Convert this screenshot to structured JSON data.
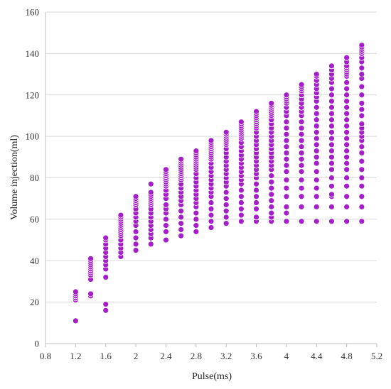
{
  "chart_data": {
    "type": "scatter",
    "title": "",
    "xlabel": "Pulse(ms)",
    "ylabel": "Volume injection(ml)",
    "xlim": [
      0.8,
      5.2
    ],
    "ylim": [
      0,
      160
    ],
    "xticks": [
      "0.8",
      "1.2",
      "1.6",
      "2",
      "2.4",
      "2.8",
      "3.2",
      "3.6",
      "4",
      "4.4",
      "4.8",
      "5.2"
    ],
    "yticks": [
      "0",
      "20",
      "40",
      "60",
      "80",
      "100",
      "120",
      "140",
      "160"
    ],
    "grid": "horizontal",
    "legend": "none",
    "marker_color": "#a51fc8",
    "series": [
      {
        "columns": [
          {
            "x": 1.2,
            "y": [
              11,
              21,
              22,
              23,
              24,
              25
            ]
          },
          {
            "x": 1.4,
            "y": [
              23,
              24,
              31,
              33,
              34,
              35,
              36,
              37,
              38,
              39,
              40,
              41
            ]
          },
          {
            "x": 1.6,
            "y": [
              16,
              19,
              32,
              36,
              38,
              40,
              42,
              44,
              46,
              48,
              50,
              51
            ]
          },
          {
            "x": 1.8,
            "y": [
              42,
              44,
              46,
              48,
              50,
              52,
              53,
              54,
              55,
              56,
              57,
              58,
              59,
              60,
              61,
              62
            ]
          },
          {
            "x": 2.0,
            "y": [
              45,
              48,
              51,
              54,
              57,
              59,
              61,
              63,
              65,
              67,
              68,
              69,
              70,
              71
            ]
          },
          {
            "x": 2.2,
            "y": [
              48,
              51,
              53,
              55,
              57,
              59,
              61,
              63,
              65,
              67,
              68,
              69,
              70,
              71,
              72,
              73,
              77
            ]
          },
          {
            "x": 2.4,
            "y": [
              50,
              54,
              57,
              60,
              63,
              65,
              67,
              70,
              72,
              74,
              76,
              77,
              78,
              79,
              80,
              81,
              82,
              83,
              84
            ]
          },
          {
            "x": 2.6,
            "y": [
              52,
              55,
              58,
              61,
              64,
              67,
              69,
              71,
              73,
              75,
              77,
              79,
              80,
              81,
              82,
              83,
              84,
              85,
              86,
              87,
              88,
              89
            ]
          },
          {
            "x": 2.8,
            "y": [
              54,
              57,
              60,
              63,
              66,
              68,
              70,
              72,
              74,
              76,
              78,
              80,
              82,
              84,
              85,
              86,
              87,
              88,
              89,
              90,
              91,
              92,
              93
            ]
          },
          {
            "x": 3.0,
            "y": [
              56,
              59,
              62,
              65,
              68,
              71,
              73,
              75,
              77,
              79,
              81,
              83,
              85,
              87,
              89,
              90,
              91,
              92,
              93,
              94,
              95,
              96,
              97,
              98
            ]
          },
          {
            "x": 3.2,
            "y": [
              58,
              61,
              64,
              67,
              70,
              73,
              76,
              78,
              80,
              82,
              84,
              86,
              88,
              90,
              92,
              94,
              96,
              97,
              98,
              99,
              100,
              101,
              102
            ]
          },
          {
            "x": 3.4,
            "y": [
              59,
              62,
              65,
              68,
              71,
              74,
              77,
              79,
              81,
              83,
              85,
              87,
              89,
              91,
              93,
              95,
              97,
              99,
              100,
              101,
              102,
              103,
              104,
              105,
              106,
              107
            ]
          },
          {
            "x": 3.6,
            "y": [
              59,
              61,
              65,
              68,
              71,
              74,
              77,
              80,
              82,
              84,
              86,
              88,
              90,
              92,
              94,
              96,
              98,
              100,
              102,
              104,
              105,
              106,
              107,
              108,
              109,
              110,
              111,
              112
            ]
          },
          {
            "x": 3.8,
            "y": [
              59,
              61,
              63,
              66,
              69,
              72,
              75,
              78,
              81,
              84,
              86,
              88,
              90,
              92,
              94,
              96,
              98,
              100,
              102,
              104,
              106,
              108,
              110,
              111,
              112,
              113,
              114,
              115,
              116
            ]
          },
          {
            "x": 4.0,
            "y": [
              59,
              63,
              66,
              71,
              75,
              79,
              83,
              86,
              89,
              92,
              95,
              98,
              101,
              104,
              107,
              110,
              112,
              114,
              116,
              117,
              118,
              119,
              120
            ]
          },
          {
            "x": 4.2,
            "y": [
              59,
              66,
              71,
              75,
              79,
              83,
              86,
              89,
              92,
              95,
              98,
              101,
              104,
              107,
              110,
              112,
              114,
              116,
              118,
              120,
              122,
              123,
              124,
              125
            ]
          },
          {
            "x": 4.4,
            "y": [
              59,
              66,
              71,
              75,
              79,
              83,
              87,
              90,
              93,
              96,
              99,
              102,
              105,
              108,
              111,
              114,
              117,
              119,
              121,
              123,
              125,
              127,
              129,
              130
            ]
          },
          {
            "x": 4.6,
            "y": [
              59,
              66,
              71,
              72,
              76,
              80,
              84,
              87,
              90,
              93,
              96,
              99,
              102,
              105,
              108,
              111,
              114,
              117,
              120,
              123,
              126,
              128,
              130,
              132,
              134
            ]
          },
          {
            "x": 4.8,
            "y": [
              59,
              66,
              71,
              76,
              80,
              84,
              87,
              90,
              93,
              96,
              99,
              102,
              105,
              108,
              111,
              114,
              117,
              120,
              123,
              126,
              129,
              130,
              131,
              132,
              133,
              134,
              136,
              138
            ]
          },
          {
            "x": 5.0,
            "y": [
              59,
              66,
              71,
              76,
              80,
              84,
              88,
              92,
              95,
              98,
              100,
              102,
              104,
              106,
              110,
              113,
              116,
              120,
              124,
              128,
              130,
              133,
              136,
              138,
              140,
              141,
              142,
              143,
              144
            ]
          }
        ]
      }
    ]
  }
}
